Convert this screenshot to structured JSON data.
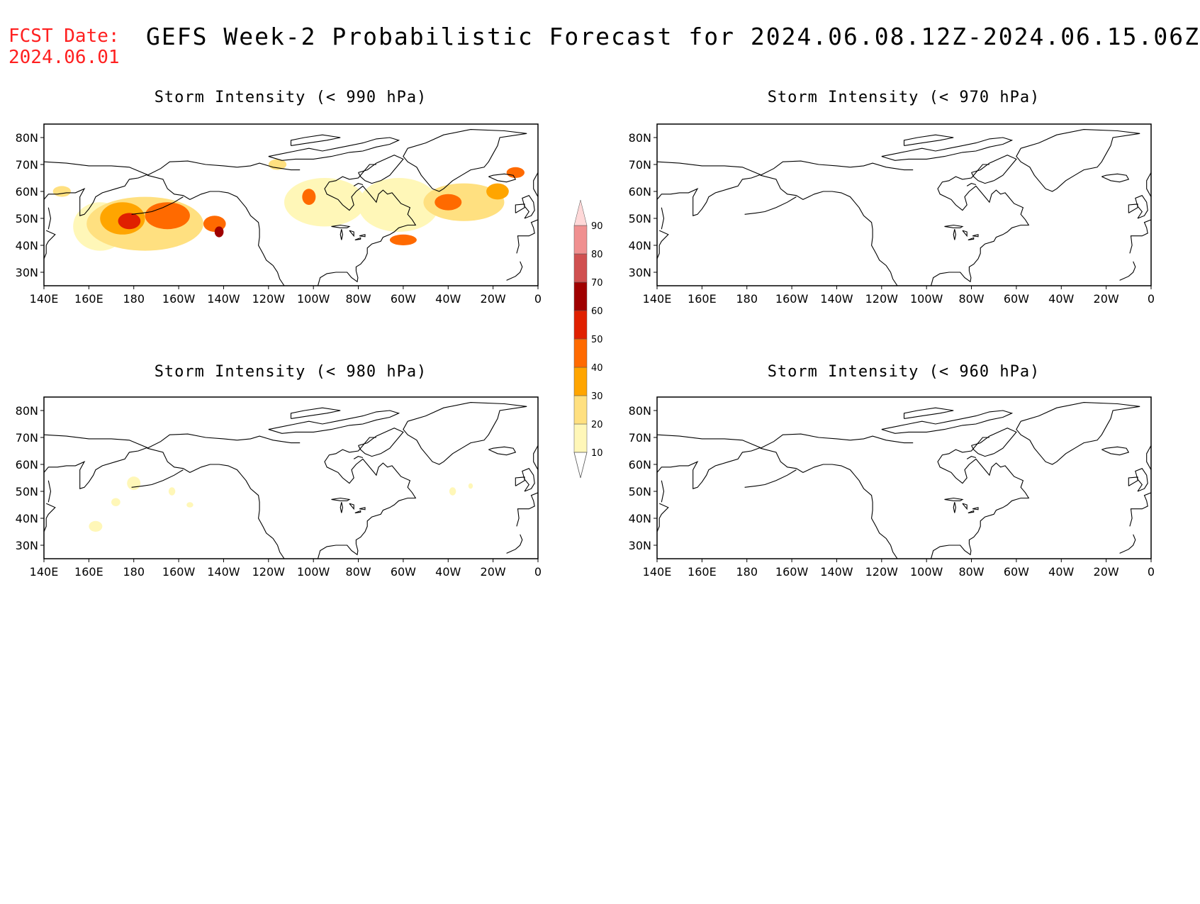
{
  "header": {
    "fcst_label": "FCST Date:",
    "fcst_date": "2024.06.01",
    "title": "GEFS Week-2 Probabilistic Forecast for 2024.06.08.12Z-2024.06.15.06Z"
  },
  "panels": [
    {
      "id": "p990",
      "title": "Storm Intensity (< 990 hPa)"
    },
    {
      "id": "p970",
      "title": "Storm Intensity (< 970 hPa)"
    },
    {
      "id": "p980",
      "title": "Storm Intensity (< 980 hPa)"
    },
    {
      "id": "p960",
      "title": "Storm Intensity (< 960 hPa)"
    }
  ],
  "axes": {
    "lat_ticks": [
      "80N",
      "70N",
      "60N",
      "50N",
      "40N",
      "30N"
    ],
    "lat_values": [
      80,
      70,
      60,
      50,
      40,
      30
    ],
    "lon_ticks": [
      "140E",
      "160E",
      "180",
      "160W",
      "140W",
      "120W",
      "100W",
      "80W",
      "60W",
      "40W",
      "20W",
      "0"
    ],
    "lon_values": [
      140,
      160,
      180,
      200,
      220,
      240,
      260,
      280,
      300,
      320,
      340,
      360
    ],
    "lon_range": [
      140,
      360
    ],
    "lat_range": [
      25,
      85
    ]
  },
  "colorbar": {
    "labels": [
      "10",
      "20",
      "30",
      "40",
      "50",
      "60",
      "70",
      "80",
      "90"
    ],
    "levels": [
      10,
      20,
      30,
      40,
      50,
      60,
      70,
      80,
      90
    ],
    "colors": [
      "#fff7b8",
      "#ffe080",
      "#ffa500",
      "#ff6a00",
      "#e02000",
      "#a00000",
      "#d05050",
      "#f09090",
      "#ffd8d8"
    ]
  },
  "colors": {
    "fcst": "#ff2020",
    "land_outline": "#000000",
    "map_background": "#ffffff"
  },
  "probability_areas": {
    "p990": [
      {
        "lon": 165,
        "lat": 47,
        "rlon": 12,
        "rlat": 9,
        "p": 10
      },
      {
        "lon": 185,
        "lat": 48,
        "rlon": 26,
        "rlat": 10,
        "p": 20
      },
      {
        "lon": 175,
        "lat": 50,
        "rlon": 10,
        "rlat": 6,
        "p": 30
      },
      {
        "lon": 195,
        "lat": 51,
        "rlon": 10,
        "rlat": 5,
        "p": 40
      },
      {
        "lon": 178,
        "lat": 49,
        "rlon": 5,
        "rlat": 3,
        "p": 50
      },
      {
        "lon": 216,
        "lat": 48,
        "rlon": 5,
        "rlat": 3,
        "p": 40
      },
      {
        "lon": 218,
        "lat": 45,
        "rlon": 2,
        "rlat": 2,
        "p": 60
      },
      {
        "lon": 148,
        "lat": 60,
        "rlon": 4,
        "rlat": 2,
        "p": 20
      },
      {
        "lon": 265,
        "lat": 56,
        "rlon": 18,
        "rlat": 9,
        "p": 10
      },
      {
        "lon": 258,
        "lat": 58,
        "rlon": 3,
        "rlat": 3,
        "p": 40
      },
      {
        "lon": 298,
        "lat": 55,
        "rlon": 18,
        "rlat": 10,
        "p": 10
      },
      {
        "lon": 300,
        "lat": 42,
        "rlon": 6,
        "rlat": 2,
        "p": 40
      },
      {
        "lon": 327,
        "lat": 56,
        "rlon": 18,
        "rlat": 7,
        "p": 20
      },
      {
        "lon": 320,
        "lat": 56,
        "rlon": 6,
        "rlat": 3,
        "p": 40
      },
      {
        "lon": 342,
        "lat": 60,
        "rlon": 5,
        "rlat": 3,
        "p": 30
      },
      {
        "lon": 350,
        "lat": 67,
        "rlon": 4,
        "rlat": 2,
        "p": 40
      },
      {
        "lon": 244,
        "lat": 70,
        "rlon": 4,
        "rlat": 2,
        "p": 20
      }
    ],
    "p980": [
      {
        "lon": 163,
        "lat": 37,
        "rlon": 3,
        "rlat": 2,
        "p": 10
      },
      {
        "lon": 172,
        "lat": 46,
        "rlon": 2,
        "rlat": 1.5,
        "p": 10
      },
      {
        "lon": 180,
        "lat": 53,
        "rlon": 3,
        "rlat": 2.5,
        "p": 10
      },
      {
        "lon": 197,
        "lat": 50,
        "rlon": 1.5,
        "rlat": 1.5,
        "p": 10
      },
      {
        "lon": 205,
        "lat": 45,
        "rlon": 1.5,
        "rlat": 1,
        "p": 10
      },
      {
        "lon": 322,
        "lat": 50,
        "rlon": 1.5,
        "rlat": 1.5,
        "p": 10
      },
      {
        "lon": 330,
        "lat": 52,
        "rlon": 1,
        "rlat": 1,
        "p": 10
      }
    ],
    "p970": [],
    "p960": []
  }
}
